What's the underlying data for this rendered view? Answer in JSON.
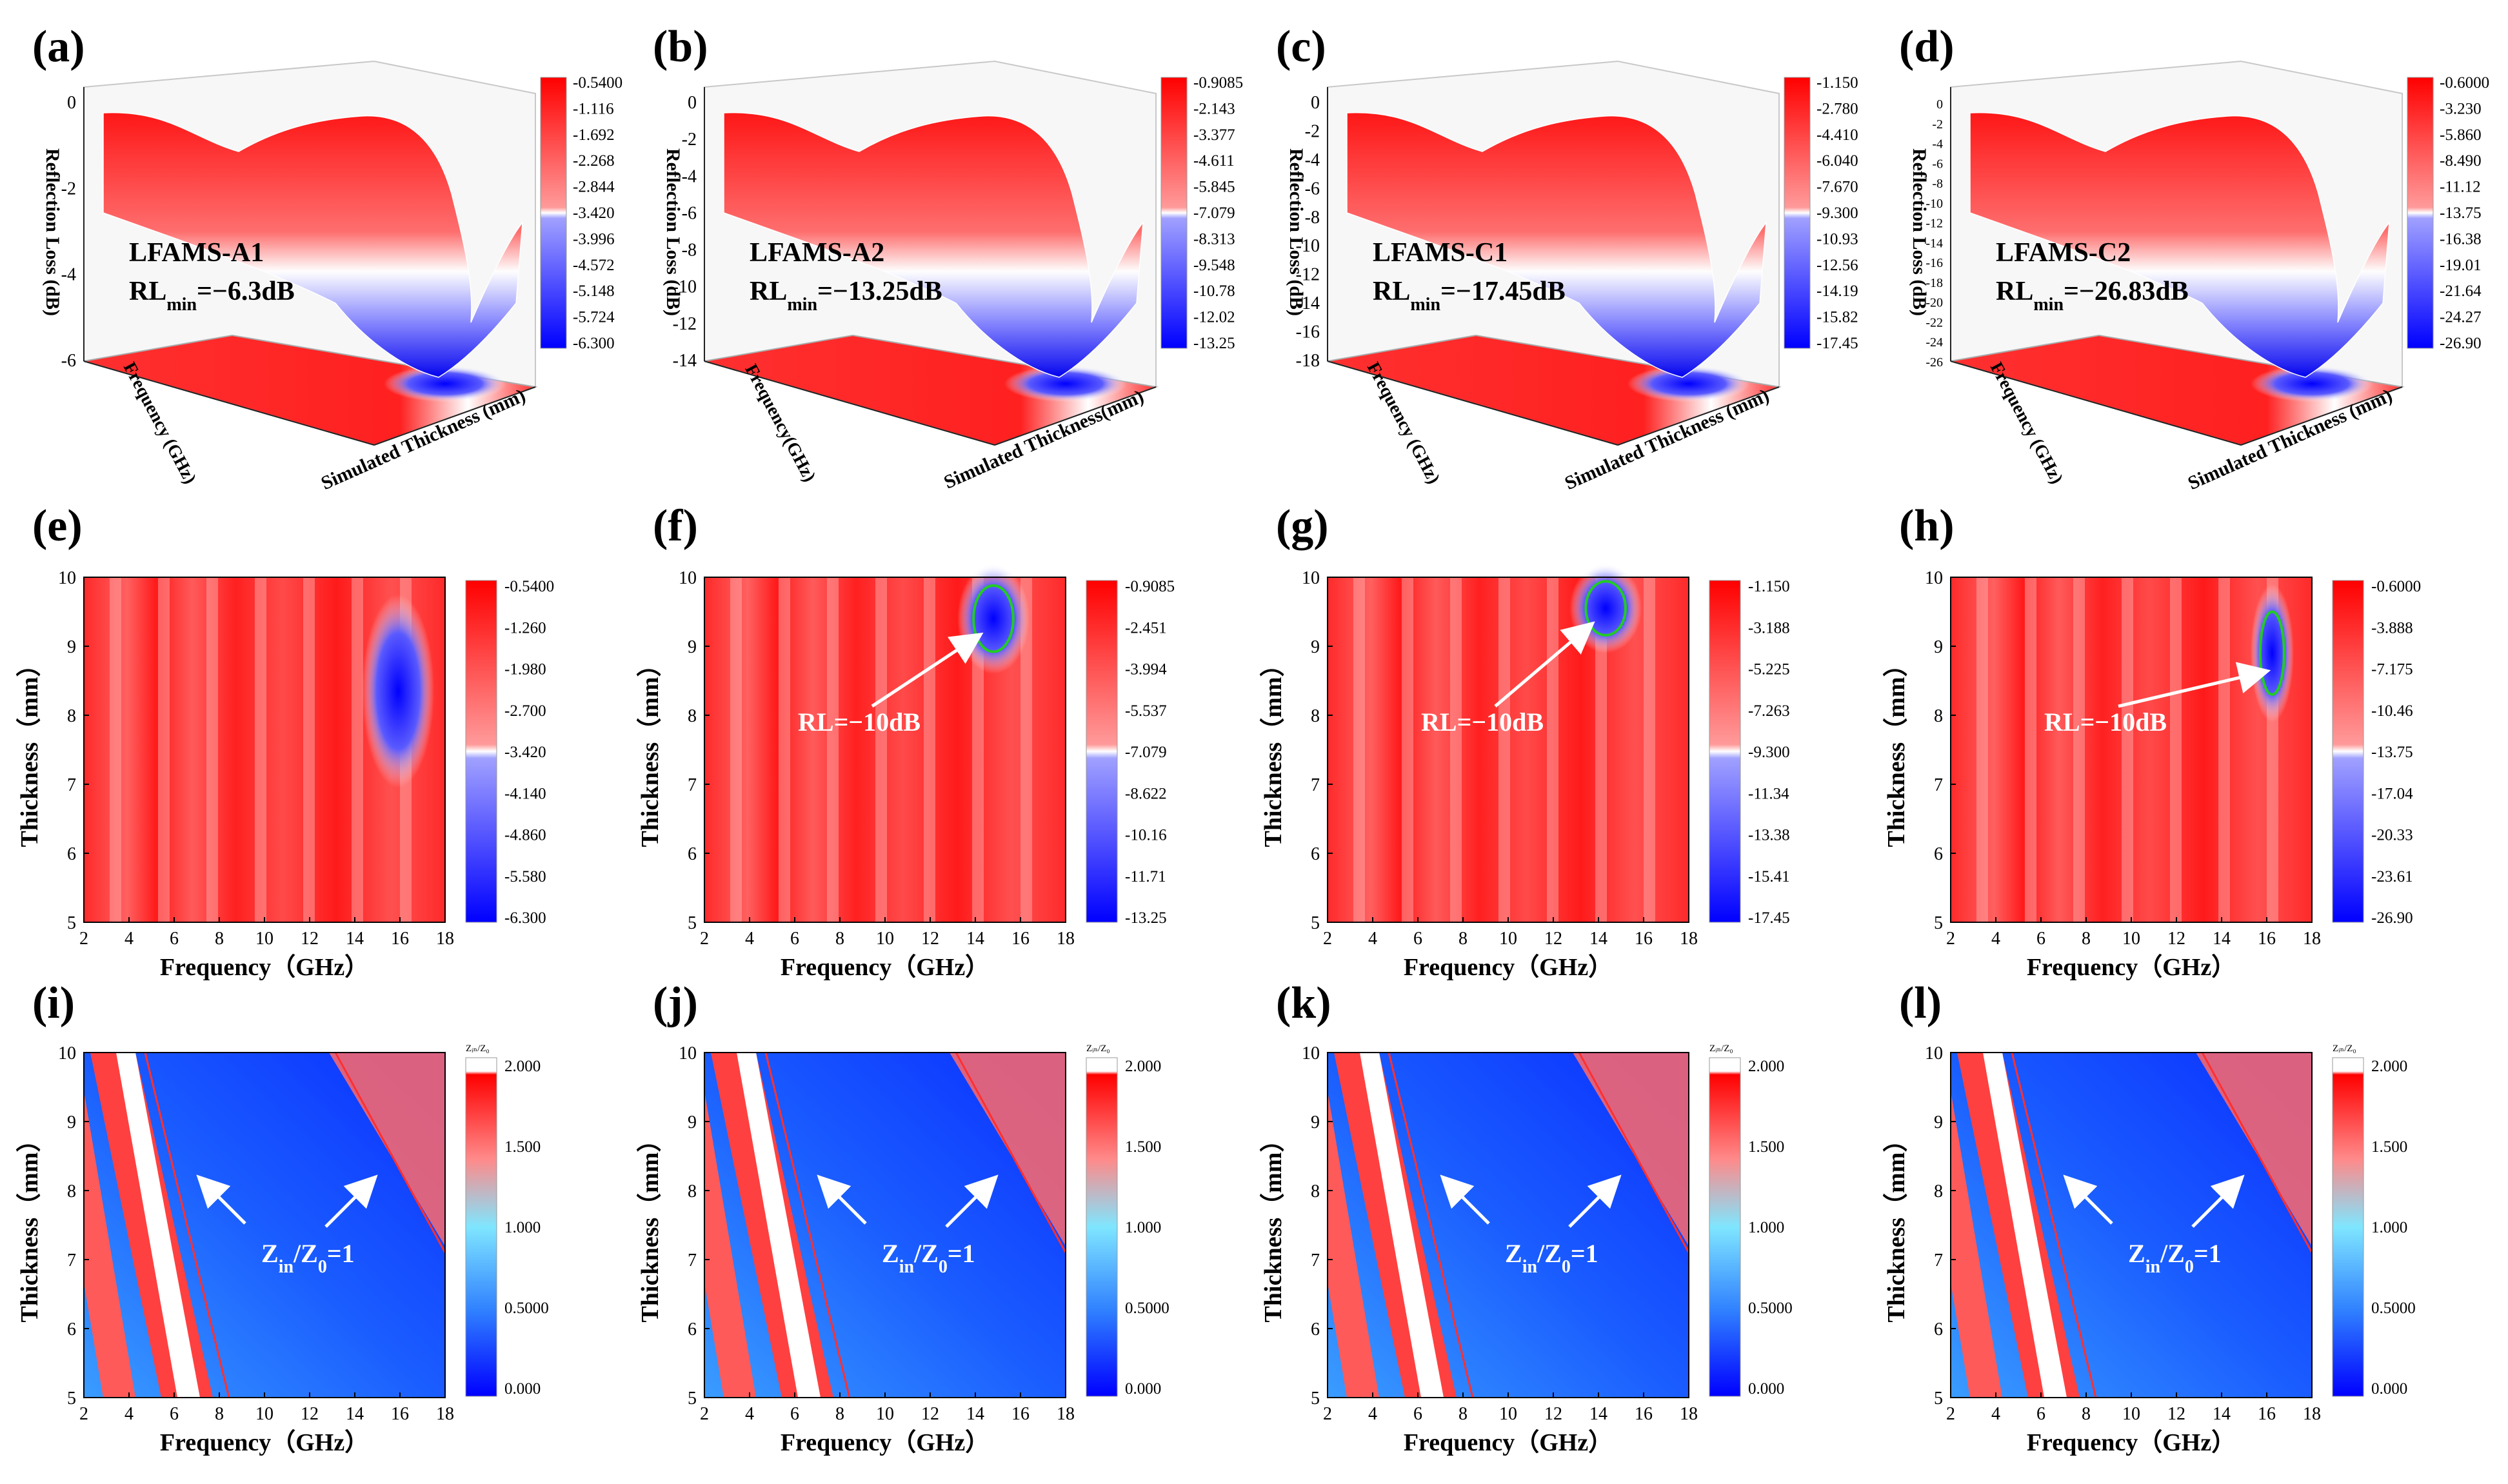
{
  "row_3d": [
    {
      "panel": "(a)",
      "sample": "LFAMS-A1",
      "rl_prefix": "RL",
      "rl_sub": "min",
      "rl_value": "=−6.3dB",
      "zlabel": "Reflection Loss (dB)",
      "xlabel": "Frequency (GHz)",
      "ylabel": "Simulated Thickness (mm)",
      "zticks": [
        "0",
        "-2",
        "-4",
        "-6"
      ],
      "colorbar": [
        "-0.5400",
        "-1.116",
        "-1.692",
        "-2.268",
        "-2.844",
        "-3.420",
        "-3.996",
        "-4.572",
        "-5.148",
        "-5.724",
        "-6.300"
      ]
    },
    {
      "panel": "(b)",
      "sample": "LFAMS-A2",
      "rl_prefix": "RL",
      "rl_sub": "min",
      "rl_value": "=−13.25dB",
      "zlabel": "Reflection Loss (dB)",
      "xlabel": "Frequency(GHz)",
      "ylabel": "Simulated Thickness(mm)",
      "zticks": [
        "0",
        "-2",
        "-4",
        "-6",
        "-8",
        "-10",
        "-12",
        "-14"
      ],
      "colorbar": [
        "-0.9085",
        "-2.143",
        "-3.377",
        "-4.611",
        "-5.845",
        "-7.079",
        "-8.313",
        "-9.548",
        "-10.78",
        "-12.02",
        "-13.25"
      ]
    },
    {
      "panel": "(c)",
      "sample": "LFAMS-C1",
      "rl_prefix": "RL",
      "rl_sub": "min",
      "rl_value": "=−17.45dB",
      "zlabel": "Reflection Loss (dB)",
      "xlabel": "Frequency (GHz)",
      "ylabel": "Simulated Thickness (mm)",
      "zticks": [
        "0",
        "-2",
        "-4",
        "-6",
        "-8",
        "-10",
        "-12",
        "-14",
        "-16",
        "-18"
      ],
      "colorbar": [
        "-1.150",
        "-2.780",
        "-4.410",
        "-6.040",
        "-7.670",
        "-9.300",
        "-10.93",
        "-12.56",
        "-14.19",
        "-15.82",
        "-17.45"
      ]
    },
    {
      "panel": "(d)",
      "sample": "LFAMS-C2",
      "rl_prefix": "RL",
      "rl_sub": "min",
      "rl_value": "=−26.83dB",
      "zlabel": "Reflection Loss (dB)",
      "xlabel": "Frequency (GHz)",
      "ylabel": "Simulated Thickness (mm)",
      "zticks": [
        "0",
        "-2",
        "-4",
        "-6",
        "-8",
        "-10",
        "-12",
        "-14",
        "-16",
        "-18",
        "-20",
        "-22",
        "-24",
        "-26"
      ],
      "colorbar": [
        "-0.6000",
        "-3.230",
        "-5.860",
        "-8.490",
        "-11.12",
        "-13.75",
        "-16.38",
        "-19.01",
        "-21.64",
        "-24.27",
        "-26.90"
      ]
    }
  ],
  "row_rl": [
    {
      "panel": "(e)",
      "annotation": "",
      "colorbar": [
        "-0.5400",
        "-1.260",
        "-1.980",
        "-2.700",
        "-3.420",
        "-4.140",
        "-4.860",
        "-5.580",
        "-6.300"
      ]
    },
    {
      "panel": "(f)",
      "annotation": "RL=−10dB",
      "colorbar": [
        "-0.9085",
        "-2.451",
        "-3.994",
        "-5.537",
        "-7.079",
        "-8.622",
        "-10.16",
        "-11.71",
        "-13.25"
      ]
    },
    {
      "panel": "(g)",
      "annotation": "RL=−10dB",
      "colorbar": [
        "-1.150",
        "-3.188",
        "-5.225",
        "-7.263",
        "-9.300",
        "-11.34",
        "-13.38",
        "-15.41",
        "-17.45"
      ]
    },
    {
      "panel": "(h)",
      "annotation": "RL=−10dB",
      "colorbar": [
        "-0.6000",
        "-3.888",
        "-7.175",
        "-10.46",
        "-13.75",
        "-17.04",
        "-20.33",
        "-23.61",
        "-26.90"
      ]
    }
  ],
  "row_z": [
    {
      "panel": "(i)"
    },
    {
      "panel": "(j)"
    },
    {
      "panel": "(k)"
    },
    {
      "panel": "(l)"
    }
  ],
  "z_annotation": {
    "prefix": "Z",
    "sub_in": "in",
    "mid": "/Z",
    "sub_0": "0",
    "suffix": "=1"
  },
  "z_colorbar_header": "Zᵢₙ/Z₀",
  "z_colorbar": [
    "2.000",
    "1.500",
    "1.000",
    "0.5000",
    "0.000"
  ],
  "axis_2d": {
    "xlabel": "Frequency（GHz）",
    "ylabel": "Thickness（mm）",
    "xticks": [
      "2",
      "4",
      "6",
      "8",
      "10",
      "12",
      "14",
      "16",
      "18"
    ],
    "yticks": [
      "5",
      "6",
      "7",
      "8",
      "9",
      "10"
    ]
  },
  "chart_data": [
    {
      "type": "heatmap",
      "panel": "(a)",
      "sample": "LFAMS-A1",
      "rl_min_db": -6.3,
      "colorbar_range": [
        -6.3,
        -0.54
      ],
      "zlim": [
        -6.3,
        0
      ]
    },
    {
      "type": "heatmap",
      "panel": "(b)",
      "sample": "LFAMS-A2",
      "rl_min_db": -13.25,
      "colorbar_range": [
        -13.25,
        -0.9085
      ],
      "zlim": [
        -14,
        0
      ]
    },
    {
      "type": "heatmap",
      "panel": "(c)",
      "sample": "LFAMS-C1",
      "rl_min_db": -17.45,
      "colorbar_range": [
        -17.45,
        -1.15
      ],
      "zlim": [
        -18,
        0
      ]
    },
    {
      "type": "heatmap",
      "panel": "(d)",
      "sample": "LFAMS-C2",
      "rl_min_db": -26.83,
      "colorbar_range": [
        -26.9,
        -0.6
      ],
      "zlim": [
        -26,
        0
      ]
    },
    {
      "type": "heatmap",
      "panel": "(e)",
      "xlabel": "Frequency（GHz）",
      "ylabel": "Thickness（mm）",
      "xlim": [
        2,
        18
      ],
      "ylim": [
        5,
        10
      ],
      "colorbar_range": [
        -6.3,
        -0.54
      ],
      "minimum": {
        "freq_ghz": 16.5,
        "thickness_mm": 8.3
      }
    },
    {
      "type": "heatmap",
      "panel": "(f)",
      "xlabel": "Frequency（GHz）",
      "ylabel": "Thickness（mm）",
      "xlim": [
        2,
        18
      ],
      "ylim": [
        5,
        10
      ],
      "colorbar_range": [
        -13.25,
        -0.9085
      ],
      "contour_db": -10,
      "minimum": {
        "freq_ghz": 15.2,
        "thickness_mm": 9.4
      }
    },
    {
      "type": "heatmap",
      "panel": "(g)",
      "xlabel": "Frequency（GHz）",
      "ylabel": "Thickness（mm）",
      "xlim": [
        2,
        18
      ],
      "ylim": [
        5,
        10
      ],
      "colorbar_range": [
        -17.45,
        -1.15
      ],
      "contour_db": -10,
      "minimum": {
        "freq_ghz": 14.5,
        "thickness_mm": 9.6
      }
    },
    {
      "type": "heatmap",
      "panel": "(h)",
      "xlabel": "Frequency（GHz）",
      "ylabel": "Thickness（mm）",
      "xlim": [
        2,
        18
      ],
      "ylim": [
        5,
        10
      ],
      "colorbar_range": [
        -26.9,
        -0.6
      ],
      "contour_db": -10,
      "minimum": {
        "freq_ghz": 16.6,
        "thickness_mm": 8.9
      }
    },
    {
      "type": "heatmap",
      "panel": "(i)",
      "xlabel": "Frequency（GHz）",
      "ylabel": "Thickness（mm）",
      "xlim": [
        2,
        18
      ],
      "ylim": [
        5,
        10
      ],
      "colorbar_range": [
        0,
        2
      ],
      "contour_value": 1
    },
    {
      "type": "heatmap",
      "panel": "(j)",
      "xlabel": "Frequency（GHz）",
      "ylabel": "Thickness（mm）",
      "xlim": [
        2,
        18
      ],
      "ylim": [
        5,
        10
      ],
      "colorbar_range": [
        0,
        2
      ],
      "contour_value": 1
    },
    {
      "type": "heatmap",
      "panel": "(k)",
      "xlabel": "Frequency（GHz）",
      "ylabel": "Thickness（mm）",
      "xlim": [
        2,
        18
      ],
      "ylim": [
        5,
        10
      ],
      "colorbar_range": [
        0,
        2
      ],
      "contour_value": 1
    },
    {
      "type": "heatmap",
      "panel": "(l)",
      "xlabel": "Frequency（GHz）",
      "ylabel": "Thickness（mm）",
      "xlim": [
        2,
        18
      ],
      "ylim": [
        5,
        10
      ],
      "colorbar_range": [
        0,
        2
      ],
      "contour_value": 1
    }
  ]
}
